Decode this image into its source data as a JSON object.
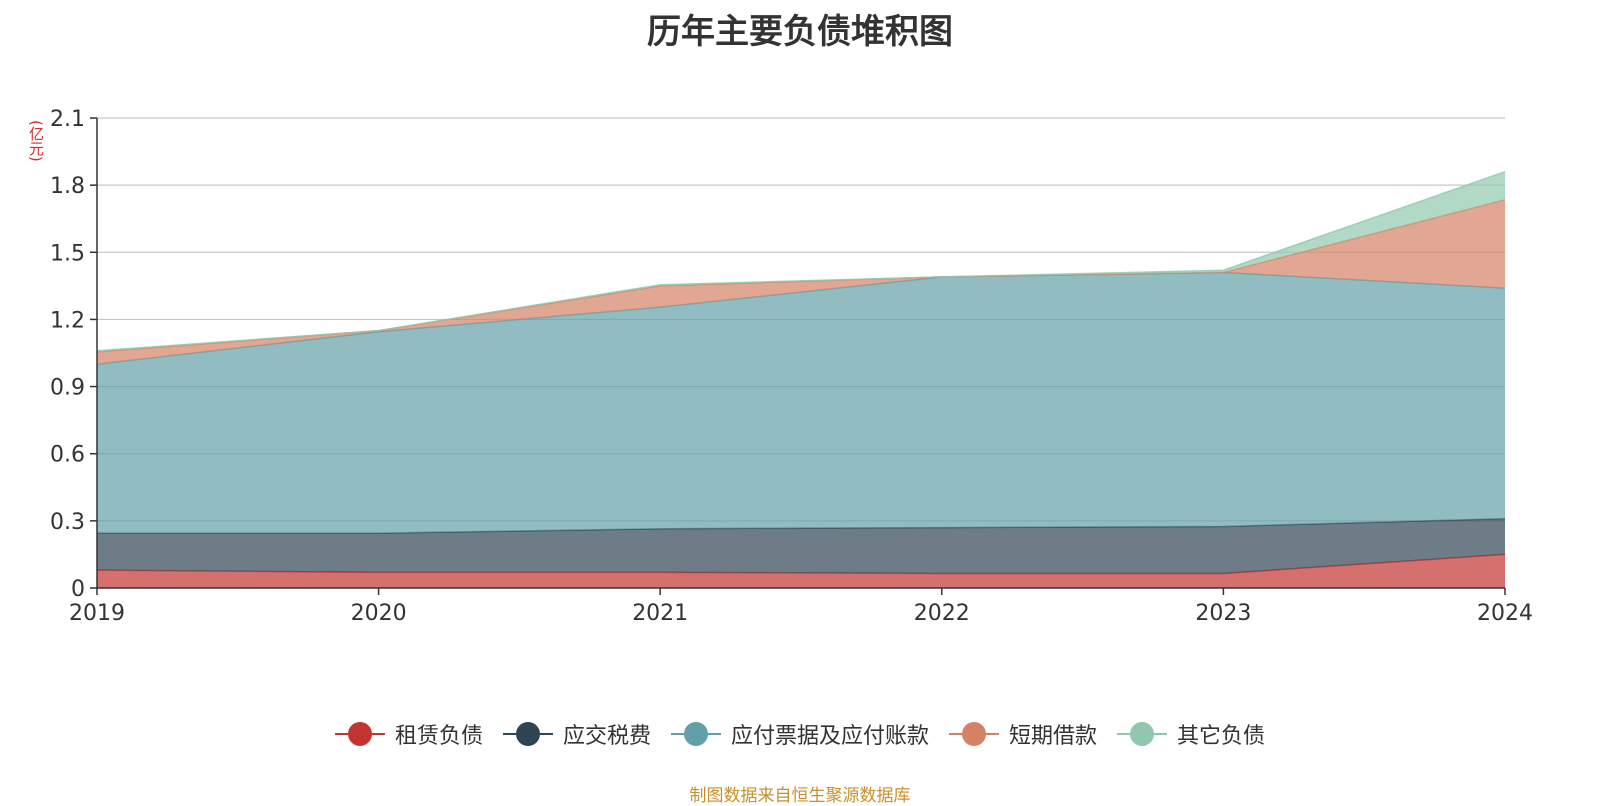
{
  "page": {
    "title": "历年主要负债堆积图",
    "source": "制图数据来自恒生聚源数据库"
  },
  "chart_data": {
    "type": "area",
    "stacked": true,
    "title": "历年主要负债堆积图",
    "ylabel": "(亿元)",
    "xlabel": "",
    "categories": [
      "2019",
      "2020",
      "2021",
      "2022",
      "2023",
      "2024"
    ],
    "ylim": [
      0,
      2.1
    ],
    "yticks": [
      0,
      0.3,
      0.6,
      0.9,
      1.2,
      1.5,
      1.8,
      2.1
    ],
    "ytick_labels": [
      "0",
      "0.3",
      "0.6",
      "0.9",
      "1.2",
      "1.5",
      "1.8",
      "2.1"
    ],
    "grid": true,
    "legend_position": "bottom",
    "series": [
      {
        "name": "租赁负债",
        "color": "#c23531",
        "values": [
          0.08,
          0.07,
          0.07,
          0.065,
          0.065,
          0.15
        ]
      },
      {
        "name": "应交税费",
        "color": "#2f4554",
        "values": [
          0.165,
          0.175,
          0.195,
          0.205,
          0.21,
          0.16
        ]
      },
      {
        "name": "应付票据及应付账款",
        "color": "#61a0a8",
        "values": [
          0.755,
          0.9,
          0.99,
          1.12,
          1.135,
          1.03
        ]
      },
      {
        "name": "短期借款",
        "color": "#d48265",
        "values": [
          0.055,
          0.005,
          0.095,
          0.0,
          0.0,
          0.395
        ]
      },
      {
        "name": "其它负债",
        "color": "#91c7ae",
        "values": [
          0.005,
          0.0,
          0.005,
          0.0,
          0.01,
          0.125
        ]
      }
    ]
  }
}
